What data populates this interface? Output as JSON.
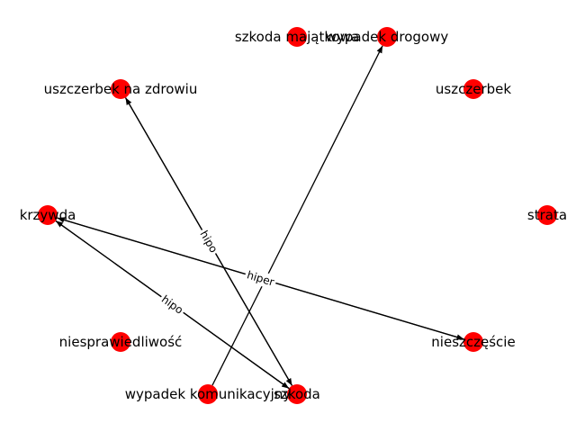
{
  "graph": {
    "type": "directed-graph",
    "node_color": "#ff0000",
    "nodes": [
      {
        "id": "szkoda-majatkowa",
        "label": "szkoda majątkowa"
      },
      {
        "id": "wypadek-drogowy",
        "label": "wypadek drogowy"
      },
      {
        "id": "uszczerbek-na-zdrowiu",
        "label": "uszczerbek na zdrowiu"
      },
      {
        "id": "uszczerbek",
        "label": "uszczerbek"
      },
      {
        "id": "krzywda",
        "label": "krzywda"
      },
      {
        "id": "strata",
        "label": "strata"
      },
      {
        "id": "niesprawiedliwosc",
        "label": "niesprawiedliwość"
      },
      {
        "id": "nieszczescie",
        "label": "nieszczęście"
      },
      {
        "id": "wypadek-komunikacyjny",
        "label": "wypadek komunikacyjny"
      },
      {
        "id": "szkoda",
        "label": "szkoda"
      }
    ],
    "edges": [
      {
        "source": "wypadek-komunikacyjny",
        "target": "wypadek-drogowy",
        "label": ""
      },
      {
        "source": "szkoda",
        "target": "uszczerbek-na-zdrowiu",
        "label": "hipo"
      },
      {
        "source": "uszczerbek-na-zdrowiu",
        "target": "szkoda",
        "label": ""
      },
      {
        "source": "nieszczescie",
        "target": "krzywda",
        "label": "hiper"
      },
      {
        "source": "krzywda",
        "target": "nieszczescie",
        "label": ""
      },
      {
        "source": "szkoda",
        "target": "krzywda",
        "label": "hipo"
      },
      {
        "source": "krzywda",
        "target": "szkoda",
        "label": ""
      }
    ]
  }
}
